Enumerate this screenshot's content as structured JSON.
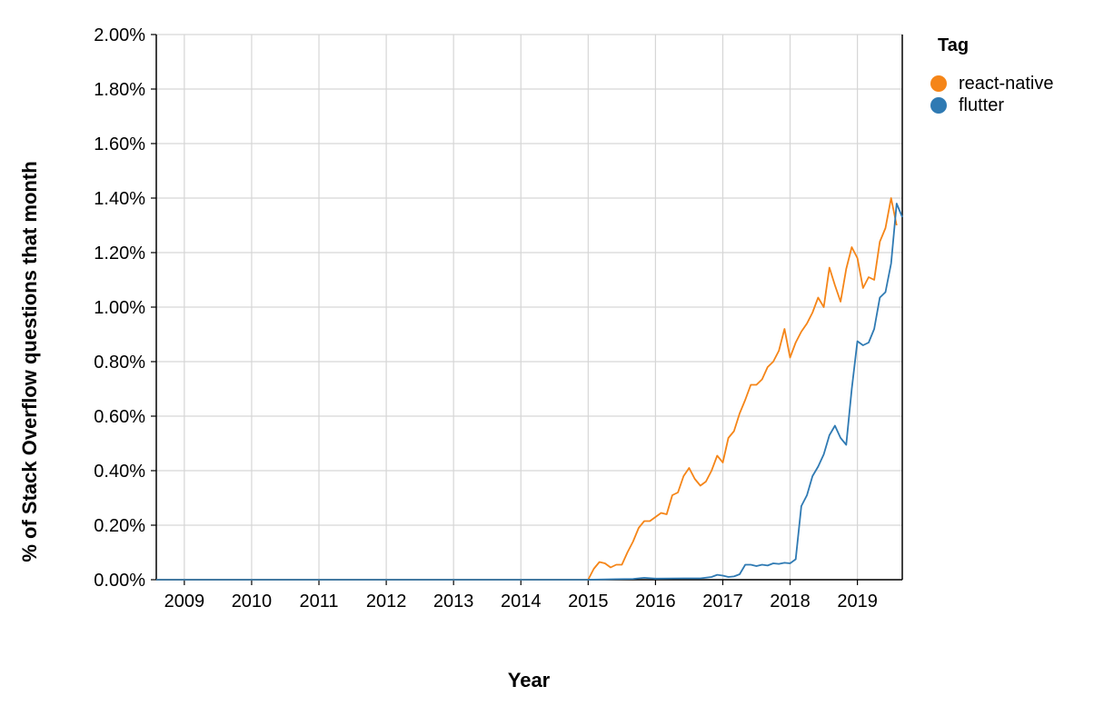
{
  "chart_data": {
    "type": "line",
    "xlabel": "Year",
    "ylabel": "% of Stack Overflow questions that month",
    "x_ticks": [
      "2009",
      "2010",
      "2011",
      "2012",
      "2013",
      "2014",
      "2015",
      "2016",
      "2017",
      "2018",
      "2019"
    ],
    "y_ticks": [
      "0.00%",
      "0.20%",
      "0.40%",
      "0.60%",
      "0.80%",
      "1.00%",
      "1.20%",
      "1.40%",
      "1.60%",
      "1.80%",
      "2.00%"
    ],
    "xlim": [
      "2008-08",
      "2019-09"
    ],
    "ylim": [
      0,
      2.0
    ],
    "grid": true,
    "legend": {
      "title": "Tag",
      "position": "top-right",
      "entries": [
        "react-native",
        "flutter"
      ]
    },
    "series": [
      {
        "name": "react-native",
        "color": "#f58518",
        "points": [
          [
            "2008-08",
            0
          ],
          [
            "2009-01",
            0
          ],
          [
            "2010-01",
            0
          ],
          [
            "2011-01",
            0
          ],
          [
            "2012-01",
            0
          ],
          [
            "2013-01",
            0
          ],
          [
            "2014-01",
            0
          ],
          [
            "2015-01",
            0
          ],
          [
            "2015-02",
            0.04
          ],
          [
            "2015-03",
            0.065
          ],
          [
            "2015-04",
            0.06
          ],
          [
            "2015-05",
            0.045
          ],
          [
            "2015-06",
            0.055
          ],
          [
            "2015-07",
            0.055
          ],
          [
            "2015-08",
            0.1
          ],
          [
            "2015-09",
            0.14
          ],
          [
            "2015-10",
            0.19
          ],
          [
            "2015-11",
            0.215
          ],
          [
            "2015-12",
            0.215
          ],
          [
            "2016-01",
            0.23
          ],
          [
            "2016-02",
            0.245
          ],
          [
            "2016-03",
            0.24
          ],
          [
            "2016-04",
            0.31
          ],
          [
            "2016-05",
            0.32
          ],
          [
            "2016-06",
            0.38
          ],
          [
            "2016-07",
            0.41
          ],
          [
            "2016-08",
            0.37
          ],
          [
            "2016-09",
            0.345
          ],
          [
            "2016-10",
            0.36
          ],
          [
            "2016-11",
            0.4
          ],
          [
            "2016-12",
            0.455
          ],
          [
            "2017-01",
            0.43
          ],
          [
            "2017-02",
            0.52
          ],
          [
            "2017-03",
            0.545
          ],
          [
            "2017-04",
            0.61
          ],
          [
            "2017-05",
            0.66
          ],
          [
            "2017-06",
            0.715
          ],
          [
            "2017-07",
            0.715
          ],
          [
            "2017-08",
            0.735
          ],
          [
            "2017-09",
            0.78
          ],
          [
            "2017-10",
            0.8
          ],
          [
            "2017-11",
            0.84
          ],
          [
            "2017-12",
            0.92
          ],
          [
            "2018-01",
            0.815
          ],
          [
            "2018-02",
            0.87
          ],
          [
            "2018-03",
            0.91
          ],
          [
            "2018-04",
            0.94
          ],
          [
            "2018-05",
            0.98
          ],
          [
            "2018-06",
            1.035
          ],
          [
            "2018-07",
            1.0
          ],
          [
            "2018-08",
            1.145
          ],
          [
            "2018-09",
            1.08
          ],
          [
            "2018-10",
            1.02
          ],
          [
            "2018-11",
            1.14
          ],
          [
            "2018-12",
            1.22
          ],
          [
            "2019-01",
            1.18
          ],
          [
            "2019-02",
            1.07
          ],
          [
            "2019-03",
            1.11
          ],
          [
            "2019-04",
            1.1
          ],
          [
            "2019-05",
            1.24
          ],
          [
            "2019-06",
            1.29
          ],
          [
            "2019-07",
            1.4
          ],
          [
            "2019-08",
            1.3
          ]
        ]
      },
      {
        "name": "flutter",
        "color": "#2f7ab3",
        "points": [
          [
            "2008-08",
            0
          ],
          [
            "2009-01",
            0
          ],
          [
            "2010-01",
            0
          ],
          [
            "2011-01",
            0
          ],
          [
            "2012-01",
            0
          ],
          [
            "2013-01",
            0
          ],
          [
            "2014-01",
            0
          ],
          [
            "2015-01",
            0
          ],
          [
            "2015-06",
            0.002
          ],
          [
            "2015-09",
            0.003
          ],
          [
            "2015-11",
            0.007
          ],
          [
            "2016-01",
            0.004
          ],
          [
            "2016-06",
            0.005
          ],
          [
            "2016-09",
            0.005
          ],
          [
            "2016-11",
            0.01
          ],
          [
            "2016-12",
            0.018
          ],
          [
            "2017-01",
            0.015
          ],
          [
            "2017-02",
            0.01
          ],
          [
            "2017-03",
            0.012
          ],
          [
            "2017-04",
            0.02
          ],
          [
            "2017-05",
            0.055
          ],
          [
            "2017-06",
            0.055
          ],
          [
            "2017-07",
            0.05
          ],
          [
            "2017-08",
            0.055
          ],
          [
            "2017-09",
            0.052
          ],
          [
            "2017-10",
            0.06
          ],
          [
            "2017-11",
            0.058
          ],
          [
            "2017-12",
            0.062
          ],
          [
            "2018-01",
            0.06
          ],
          [
            "2018-02",
            0.075
          ],
          [
            "2018-03",
            0.27
          ],
          [
            "2018-04",
            0.31
          ],
          [
            "2018-05",
            0.38
          ],
          [
            "2018-06",
            0.415
          ],
          [
            "2018-07",
            0.46
          ],
          [
            "2018-08",
            0.53
          ],
          [
            "2018-09",
            0.565
          ],
          [
            "2018-10",
            0.52
          ],
          [
            "2018-11",
            0.495
          ],
          [
            "2018-12",
            0.7
          ],
          [
            "2019-01",
            0.875
          ],
          [
            "2019-02",
            0.86
          ],
          [
            "2019-03",
            0.87
          ],
          [
            "2019-04",
            0.92
          ],
          [
            "2019-05",
            1.035
          ],
          [
            "2019-06",
            1.055
          ],
          [
            "2019-07",
            1.16
          ],
          [
            "2019-08",
            1.38
          ],
          [
            "2019-09",
            1.33
          ]
        ]
      }
    ]
  }
}
